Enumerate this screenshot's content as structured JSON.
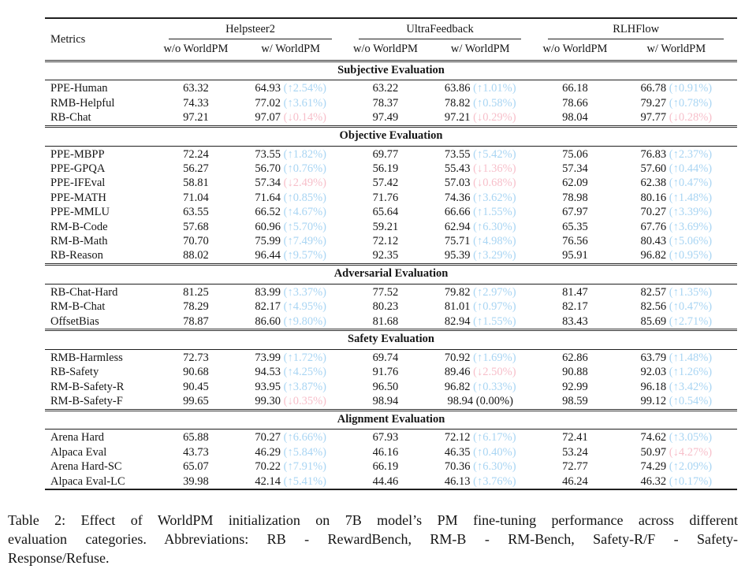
{
  "colors": {
    "up": "#a9d5f3",
    "down": "#f7bfca",
    "rule": "#1f1f1f"
  },
  "caption": {
    "lines": [
      "Table 2: Effect of WorldPM initialization on 7B model’s PM fine-tuning performance across different",
      "evaluation categories.  Abbreviations: RB - RewardBench, RM-B - RM-Bench, Safety-R/F - Safety-",
      "Response/Refuse."
    ]
  },
  "table": {
    "metrics_label": "Metrics",
    "groups": [
      {
        "label": "Helpsteer2"
      },
      {
        "label": "UltraFeedback"
      },
      {
        "label": "RLHFlow"
      }
    ],
    "subheaders": [
      "w/o WorldPM",
      "w/ WorldPM"
    ],
    "sections": [
      {
        "title": "Subjective Evaluation",
        "rows": [
          {
            "metric": "PPE-Human",
            "cells": [
              {
                "base": "63.32",
                "tuned": "64.93",
                "delta_text": "(↑2.54%)",
                "dir": "up"
              },
              {
                "base": "63.22",
                "tuned": "63.86",
                "delta_text": "(↑1.01%)",
                "dir": "up"
              },
              {
                "base": "66.18",
                "tuned": "66.78",
                "delta_text": "(↑0.91%)",
                "dir": "up"
              }
            ]
          },
          {
            "metric": "RMB-Helpful",
            "cells": [
              {
                "base": "74.33",
                "tuned": "77.02",
                "delta_text": "(↑3.61%)",
                "dir": "up"
              },
              {
                "base": "78.37",
                "tuned": "78.82",
                "delta_text": "(↑0.58%)",
                "dir": "up"
              },
              {
                "base": "78.66",
                "tuned": "79.27",
                "delta_text": "(↑0.78%)",
                "dir": "up"
              }
            ]
          },
          {
            "metric": "RB-Chat",
            "cells": [
              {
                "base": "97.21",
                "tuned": "97.07",
                "delta_text": "(↓0.14%)",
                "dir": "down"
              },
              {
                "base": "97.49",
                "tuned": "97.21",
                "delta_text": "(↓0.29%)",
                "dir": "down"
              },
              {
                "base": "98.04",
                "tuned": "97.77",
                "delta_text": "(↓0.28%)",
                "dir": "down"
              }
            ]
          }
        ]
      },
      {
        "title": "Objective Evaluation",
        "rows": [
          {
            "metric": "PPE-MBPP",
            "cells": [
              {
                "base": "72.24",
                "tuned": "73.55",
                "delta_text": "(↑1.82%)",
                "dir": "up"
              },
              {
                "base": "69.77",
                "tuned": "73.55",
                "delta_text": "(↑5.42%)",
                "dir": "up"
              },
              {
                "base": "75.06",
                "tuned": "76.83",
                "delta_text": "(↑2.37%)",
                "dir": "up"
              }
            ]
          },
          {
            "metric": "PPE-GPQA",
            "cells": [
              {
                "base": "56.27",
                "tuned": "56.70",
                "delta_text": "(↑0.76%)",
                "dir": "up"
              },
              {
                "base": "56.19",
                "tuned": "55.43",
                "delta_text": "(↓1.36%)",
                "dir": "down"
              },
              {
                "base": "57.34",
                "tuned": "57.60",
                "delta_text": "(↑0.44%)",
                "dir": "up"
              }
            ]
          },
          {
            "metric": "PPE-IFEval",
            "cells": [
              {
                "base": "58.81",
                "tuned": "57.34",
                "delta_text": "(↓2.49%)",
                "dir": "down"
              },
              {
                "base": "57.42",
                "tuned": "57.03",
                "delta_text": "(↓0.68%)",
                "dir": "down"
              },
              {
                "base": "62.09",
                "tuned": "62.38",
                "delta_text": "(↑0.47%)",
                "dir": "up"
              }
            ]
          },
          {
            "metric": "PPE-MATH",
            "cells": [
              {
                "base": "71.04",
                "tuned": "71.64",
                "delta_text": "(↑0.85%)",
                "dir": "up"
              },
              {
                "base": "71.76",
                "tuned": "74.36",
                "delta_text": "(↑3.62%)",
                "dir": "up"
              },
              {
                "base": "78.98",
                "tuned": "80.16",
                "delta_text": "(↑1.48%)",
                "dir": "up"
              }
            ]
          },
          {
            "metric": "PPE-MMLU",
            "cells": [
              {
                "base": "63.55",
                "tuned": "66.52",
                "delta_text": "(↑4.67%)",
                "dir": "up"
              },
              {
                "base": "65.64",
                "tuned": "66.66",
                "delta_text": "(↑1.55%)",
                "dir": "up"
              },
              {
                "base": "67.97",
                "tuned": "70.27",
                "delta_text": "(↑3.39%)",
                "dir": "up"
              }
            ]
          },
          {
            "metric": "RM-B-Code",
            "cells": [
              {
                "base": "57.68",
                "tuned": "60.96",
                "delta_text": "(↑5.70%)",
                "dir": "up"
              },
              {
                "base": "59.21",
                "tuned": "62.94",
                "delta_text": "(↑6.30%)",
                "dir": "up"
              },
              {
                "base": "65.35",
                "tuned": "67.76",
                "delta_text": "(↑3.69%)",
                "dir": "up"
              }
            ]
          },
          {
            "metric": "RM-B-Math",
            "cells": [
              {
                "base": "70.70",
                "tuned": "75.99",
                "delta_text": "(↑7.49%)",
                "dir": "up"
              },
              {
                "base": "72.12",
                "tuned": "75.71",
                "delta_text": "(↑4.98%)",
                "dir": "up"
              },
              {
                "base": "76.56",
                "tuned": "80.43",
                "delta_text": "(↑5.06%)",
                "dir": "up"
              }
            ]
          },
          {
            "metric": "RB-Reason",
            "cells": [
              {
                "base": "88.02",
                "tuned": "96.44",
                "delta_text": "(↑9.57%)",
                "dir": "up"
              },
              {
                "base": "92.35",
                "tuned": "95.39",
                "delta_text": "(↑3.29%)",
                "dir": "up"
              },
              {
                "base": "95.91",
                "tuned": "96.82",
                "delta_text": "(↑0.95%)",
                "dir": "up"
              }
            ]
          }
        ]
      },
      {
        "title": "Adversarial Evaluation",
        "rows": [
          {
            "metric": "RB-Chat-Hard",
            "cells": [
              {
                "base": "81.25",
                "tuned": "83.99",
                "delta_text": "(↑3.37%)",
                "dir": "up"
              },
              {
                "base": "77.52",
                "tuned": "79.82",
                "delta_text": "(↑2.97%)",
                "dir": "up"
              },
              {
                "base": "81.47",
                "tuned": "82.57",
                "delta_text": "(↑1.35%)",
                "dir": "up"
              }
            ]
          },
          {
            "metric": "RM-B-Chat",
            "cells": [
              {
                "base": "78.29",
                "tuned": "82.17",
                "delta_text": "(↑4.95%)",
                "dir": "up"
              },
              {
                "base": "80.23",
                "tuned": "81.01",
                "delta_text": "(↑0.97%)",
                "dir": "up"
              },
              {
                "base": "82.17",
                "tuned": "82.56",
                "delta_text": "(↑0.47%)",
                "dir": "up"
              }
            ]
          },
          {
            "metric": "OffsetBias",
            "cells": [
              {
                "base": "78.87",
                "tuned": "86.60",
                "delta_text": "(↑9.80%)",
                "dir": "up"
              },
              {
                "base": "81.68",
                "tuned": "82.94",
                "delta_text": "(↑1.55%)",
                "dir": "up"
              },
              {
                "base": "83.43",
                "tuned": "85.69",
                "delta_text": "(↑2.71%)",
                "dir": "up"
              }
            ]
          }
        ]
      },
      {
        "title": "Safety Evaluation",
        "rows": [
          {
            "metric": "RMB-Harmless",
            "cells": [
              {
                "base": "72.73",
                "tuned": "73.99",
                "delta_text": "(↑1.72%)",
                "dir": "up"
              },
              {
                "base": "69.74",
                "tuned": "70.92",
                "delta_text": "(↑1.69%)",
                "dir": "up"
              },
              {
                "base": "62.86",
                "tuned": "63.79",
                "delta_text": "(↑1.48%)",
                "dir": "up"
              }
            ]
          },
          {
            "metric": "RB-Safety",
            "cells": [
              {
                "base": "90.68",
                "tuned": "94.53",
                "delta_text": "(↑4.25%)",
                "dir": "up"
              },
              {
                "base": "91.76",
                "tuned": "89.46",
                "delta_text": "(↓2.50%)",
                "dir": "down"
              },
              {
                "base": "90.88",
                "tuned": "92.03",
                "delta_text": "(↑1.26%)",
                "dir": "up"
              }
            ]
          },
          {
            "metric": "RM-B-Safety-R",
            "cells": [
              {
                "base": "90.45",
                "tuned": "93.95",
                "delta_text": "(↑3.87%)",
                "dir": "up"
              },
              {
                "base": "96.50",
                "tuned": "96.82",
                "delta_text": "(↑0.33%)",
                "dir": "up"
              },
              {
                "base": "92.99",
                "tuned": "96.18",
                "delta_text": "(↑3.42%)",
                "dir": "up"
              }
            ]
          },
          {
            "metric": "RM-B-Safety-F",
            "cells": [
              {
                "base": "99.65",
                "tuned": "99.30",
                "delta_text": "(↓0.35%)",
                "dir": "down"
              },
              {
                "base": "98.94",
                "tuned": "98.94",
                "delta_text": "(0.00%)",
                "dir": "none"
              },
              {
                "base": "98.59",
                "tuned": "99.12",
                "delta_text": "(↑0.54%)",
                "dir": "up"
              }
            ]
          }
        ]
      },
      {
        "title": "Alignment Evaluation",
        "rows": [
          {
            "metric": "Arena Hard",
            "cells": [
              {
                "base": "65.88",
                "tuned": "70.27",
                "delta_text": "(↑6.66%)",
                "dir": "up"
              },
              {
                "base": "67.93",
                "tuned": "72.12",
                "delta_text": "(↑6.17%)",
                "dir": "up"
              },
              {
                "base": "72.41",
                "tuned": "74.62",
                "delta_text": "(↑3.05%)",
                "dir": "up"
              }
            ]
          },
          {
            "metric": "Alpaca Eval",
            "cells": [
              {
                "base": "43.73",
                "tuned": "46.29",
                "delta_text": "(↑5.84%)",
                "dir": "up"
              },
              {
                "base": "46.16",
                "tuned": "46.35",
                "delta_text": "(↑0.40%)",
                "dir": "up"
              },
              {
                "base": "53.24",
                "tuned": "50.97",
                "delta_text": "(↓4.27%)",
                "dir": "down"
              }
            ]
          },
          {
            "metric": "Arena Hard-SC",
            "cells": [
              {
                "base": "65.07",
                "tuned": "70.22",
                "delta_text": "(↑7.91%)",
                "dir": "up"
              },
              {
                "base": "66.19",
                "tuned": "70.36",
                "delta_text": "(↑6.30%)",
                "dir": "up"
              },
              {
                "base": "72.77",
                "tuned": "74.29",
                "delta_text": "(↑2.09%)",
                "dir": "up"
              }
            ]
          },
          {
            "metric": "Alpaca Eval-LC",
            "cells": [
              {
                "base": "39.98",
                "tuned": "42.14",
                "delta_text": "(↑5.41%)",
                "dir": "up"
              },
              {
                "base": "44.46",
                "tuned": "46.13",
                "delta_text": "(↑3.76%)",
                "dir": "up"
              },
              {
                "base": "46.24",
                "tuned": "46.32",
                "delta_text": "(↑0.17%)",
                "dir": "up"
              }
            ]
          }
        ]
      }
    ]
  }
}
